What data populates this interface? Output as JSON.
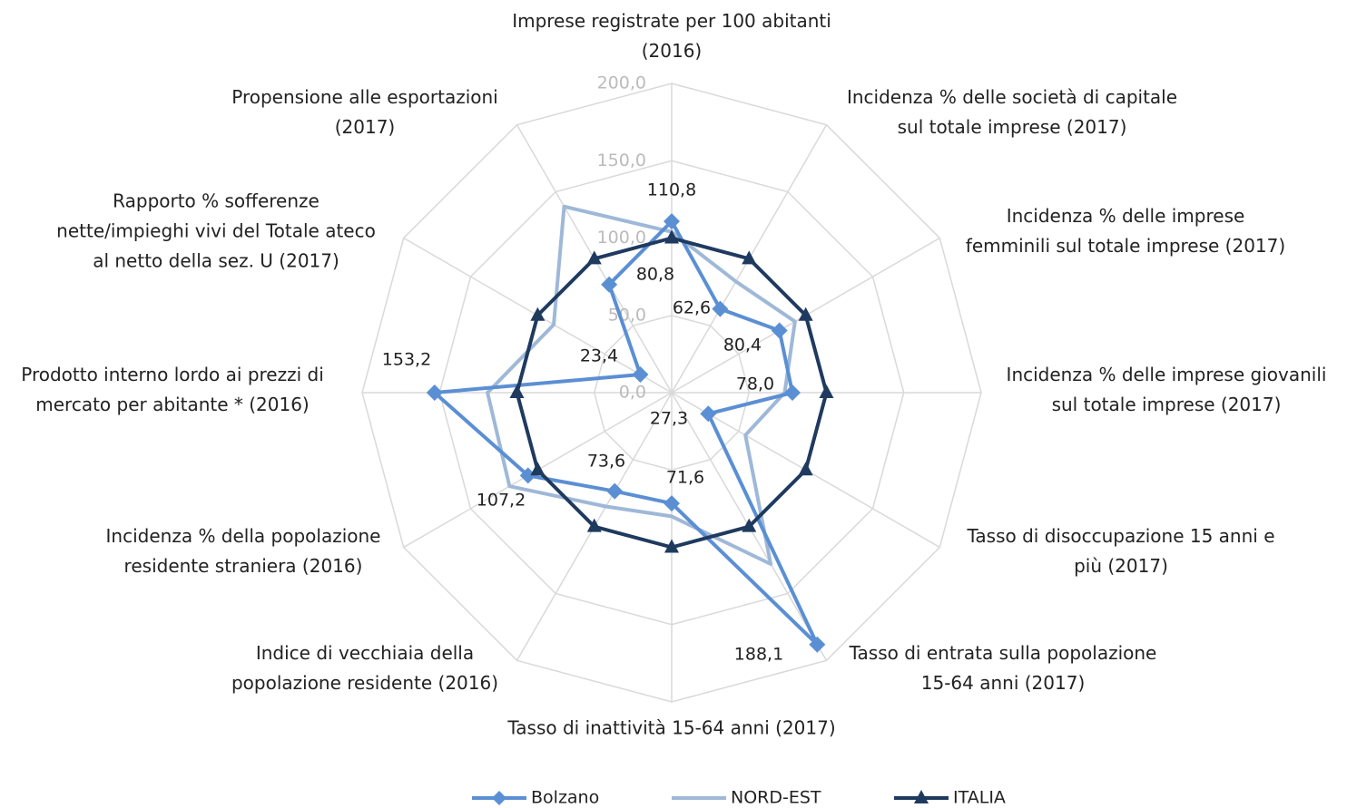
{
  "chart_data": {
    "type": "radar",
    "categories": [
      "Imprese registrate per 100 abitanti\n(2016)",
      "Incidenza % delle società di capitale\nsul totale imprese (2017)",
      "Incidenza % delle imprese\nfemminili sul totale imprese (2017)",
      "Incidenza % delle imprese giovanili\nsul totale imprese (2017)",
      "Tasso di disoccupazione 15 anni e\npiù (2017)",
      "Tasso di entrata sulla popolazione\n15-64 anni (2017)",
      "Tasso di inattività 15-64 anni (2017)",
      "Indice di vecchiaia della\npopolazione residente (2016)",
      "Incidenza % della popolazione\nresidente straniera (2016)",
      "Prodotto interno lordo ai prezzi di\nmercato per abitante * (2016)",
      "Rapporto % sofferenze\nnette/impieghi vivi del Totale ateco\nal netto della sez. U (2017)",
      "Propensione alle esportazioni\n(2017)"
    ],
    "series": [
      {
        "name": "Bolzano",
        "color": "#5b8fd4",
        "marker": "diamond",
        "values": [
          110.8,
          62.6,
          80.4,
          78.0,
          27.3,
          188.1,
          71.6,
          73.6,
          107.2,
          153.2,
          23.4,
          80.8
        ],
        "value_labels": [
          "110,8",
          "62,6",
          "80,4",
          "78,0",
          "27,3",
          "188,1",
          "71,6",
          "73,6",
          "107,2",
          "153,2",
          "23,4",
          "80,8"
        ]
      },
      {
        "name": "NORD-EST",
        "color": "#9fb8d8",
        "values": [
          104,
          83,
          92,
          73,
          55,
          128,
          80,
          85,
          121,
          119,
          88,
          139
        ]
      },
      {
        "name": "ITALIA",
        "color": "#1f3a5f",
        "marker": "triangle",
        "values": [
          100,
          100,
          100,
          100,
          100,
          100,
          100,
          100,
          100,
          100,
          100,
          100
        ]
      }
    ],
    "rlim": [
      0,
      200
    ],
    "rticks": [
      {
        "value": 0,
        "label": "0,0"
      },
      {
        "value": 50,
        "label": "50,0"
      },
      {
        "value": 100,
        "label": "100,0"
      },
      {
        "value": 150,
        "label": "150,0"
      },
      {
        "value": 200,
        "label": "200,0"
      }
    ],
    "grid": true
  }
}
